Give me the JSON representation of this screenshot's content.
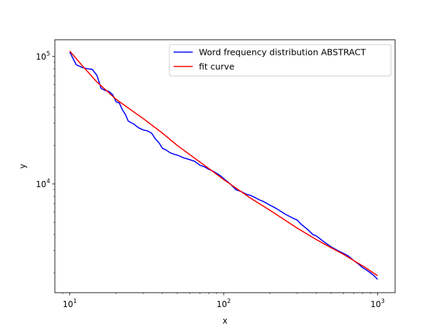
{
  "chart_data": {
    "type": "line",
    "title": "",
    "xlabel": "x",
    "ylabel": "y",
    "xscale": "log",
    "yscale": "log",
    "xlim": [
      8,
      1300
    ],
    "ylim": [
      1400,
      135000
    ],
    "grid": false,
    "legend_position": "top-right",
    "x_ticks": [
      {
        "base": "10",
        "exp": "1",
        "value": 10
      },
      {
        "base": "10",
        "exp": "2",
        "value": 100
      },
      {
        "base": "10",
        "exp": "3",
        "value": 1000
      }
    ],
    "y_ticks": [
      {
        "base": "10",
        "exp": "4",
        "value": 10000
      },
      {
        "base": "10",
        "exp": "5",
        "value": 100000
      }
    ],
    "series": [
      {
        "name": "Word frequency distribution ABSTRACT",
        "color": "#0000ff",
        "x": [
          10,
          11,
          12,
          13,
          14,
          15,
          16,
          17,
          18,
          19,
          20,
          21,
          22,
          23,
          24,
          26,
          28,
          30,
          32,
          34,
          36,
          38,
          40,
          42,
          45,
          48,
          50,
          55,
          60,
          65,
          70,
          75,
          80,
          85,
          90,
          95,
          100,
          110,
          120,
          130,
          140,
          150,
          160,
          170,
          180,
          200,
          220,
          250,
          280,
          300,
          320,
          350,
          380,
          400,
          450,
          500,
          550,
          600,
          650,
          700,
          750,
          800,
          850,
          900,
          950,
          1000
        ],
        "y": [
          108000,
          86000,
          82000,
          80000,
          79000,
          71000,
          56000,
          54000,
          53000,
          50000,
          44000,
          43000,
          38000,
          35000,
          31000,
          29500,
          27500,
          26500,
          26000,
          25000,
          22500,
          21000,
          19000,
          18500,
          17500,
          17000,
          16800,
          16000,
          15500,
          15000,
          14000,
          13600,
          13000,
          12600,
          12100,
          11600,
          11000,
          10000,
          9000,
          8700,
          8300,
          8100,
          7800,
          7500,
          7300,
          6800,
          6400,
          5800,
          5400,
          5200,
          4800,
          4400,
          4000,
          3900,
          3500,
          3200,
          3000,
          2850,
          2700,
          2500,
          2350,
          2200,
          2100,
          2000,
          1900,
          1780
        ]
      },
      {
        "name": "fit curve",
        "color": "#ff0000",
        "x": [
          10,
          12,
          15,
          20,
          25,
          30,
          40,
          50,
          60,
          80,
          100,
          150,
          200,
          300,
          400,
          500,
          600,
          700,
          800,
          900,
          1000
        ],
        "y": [
          110000,
          85000,
          63000,
          46000,
          38000,
          32500,
          25000,
          20000,
          17000,
          13200,
          10800,
          7700,
          6200,
          4500,
          3650,
          3150,
          2800,
          2500,
          2270,
          2070,
          1900
        ]
      }
    ]
  }
}
